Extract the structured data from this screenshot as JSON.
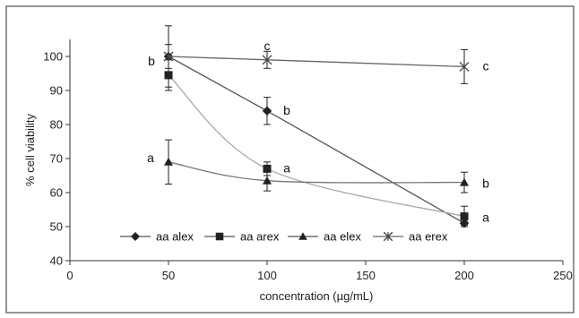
{
  "chart_data": {
    "type": "line",
    "title": "",
    "xlabel": "concentration (µg/mL)",
    "ylabel": "% cell viability",
    "xlim": [
      0,
      250
    ],
    "ylim": [
      40,
      105
    ],
    "xticks": [
      0,
      50,
      100,
      150,
      200,
      250
    ],
    "yticks": [
      40,
      50,
      60,
      70,
      80,
      90,
      100
    ],
    "grid": false,
    "legend_position": "bottom-left",
    "x": [
      50,
      100,
      200
    ],
    "series": [
      {
        "name": "aa alex",
        "marker": "diamond",
        "color": "#555555",
        "curve": "straight",
        "values": [
          100,
          84,
          51
        ],
        "errors": [
          3.5,
          4,
          0.5
        ],
        "labels": [
          "",
          "b",
          ""
        ]
      },
      {
        "name": "aa arex",
        "marker": "square",
        "color": "#aaaaaa",
        "curve": "smooth",
        "values": [
          94.5,
          67,
          53
        ],
        "errors": [
          4.5,
          2,
          3
        ],
        "labels": [
          "",
          "a",
          "a"
        ]
      },
      {
        "name": "aa elex",
        "marker": "triangle",
        "color": "#777777",
        "curve": "smooth",
        "values": [
          69,
          63.5,
          63
        ],
        "errors": [
          6.5,
          3,
          3
        ],
        "labels": [
          "a",
          "",
          "b"
        ]
      },
      {
        "name": "aa erex",
        "marker": "star",
        "color": "#666666",
        "curve": "straight",
        "values": [
          100,
          99,
          97
        ],
        "errors": [
          9,
          2.5,
          5
        ],
        "labels": [
          "b",
          "c",
          "c"
        ]
      }
    ]
  }
}
